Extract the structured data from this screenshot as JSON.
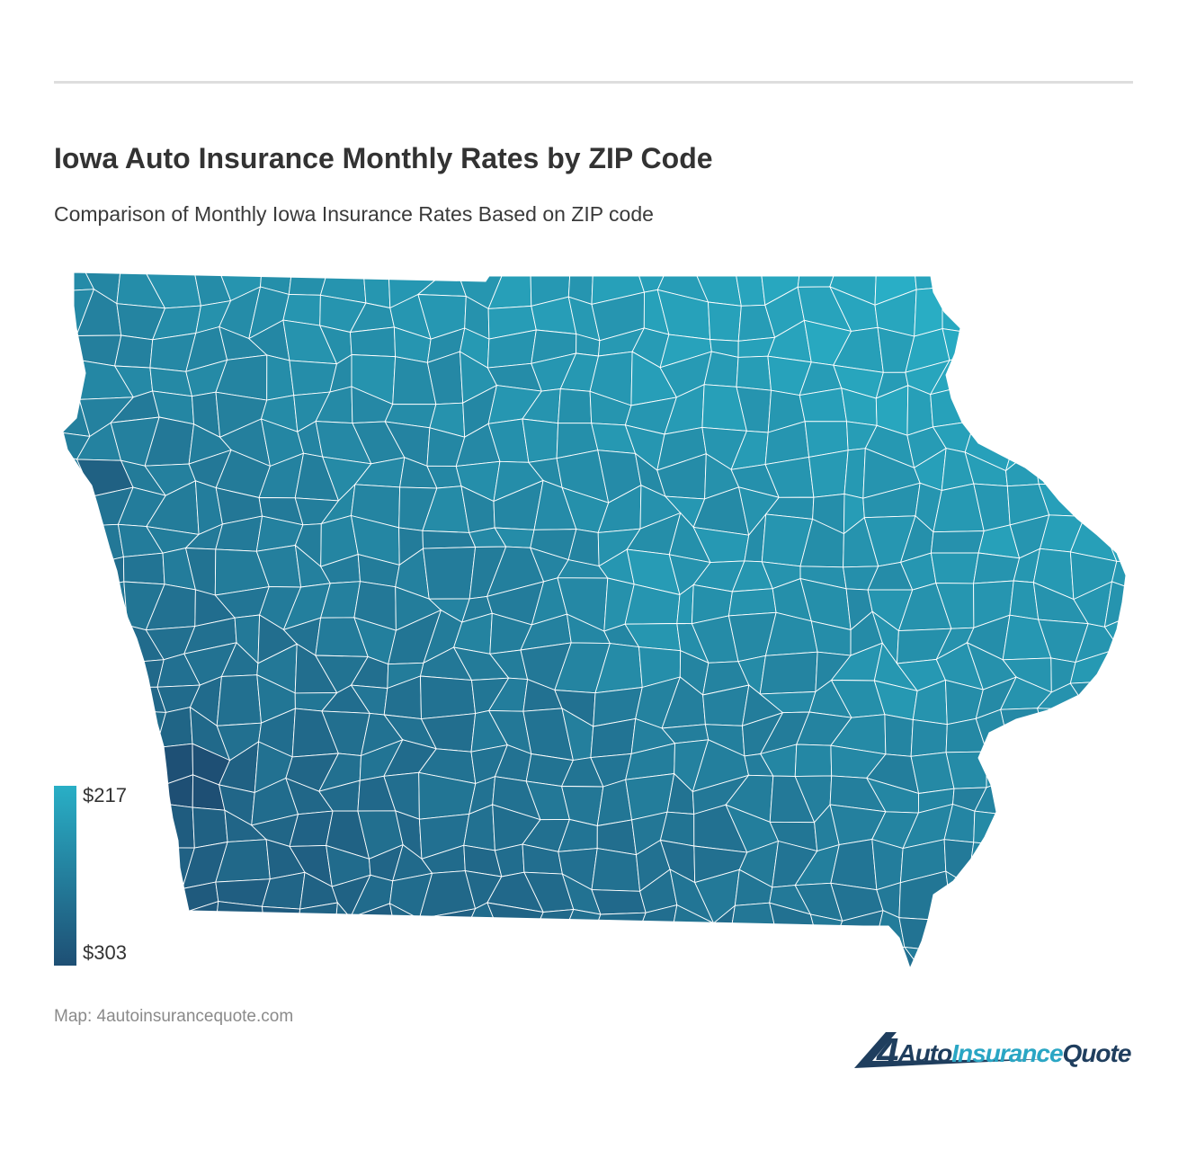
{
  "header": {
    "title": "Iowa Auto Insurance Monthly Rates by ZIP Code",
    "subtitle": "Comparison of Monthly Iowa Insurance Rates Based on ZIP code"
  },
  "legend": {
    "max_label": "$217",
    "min_label": "$303",
    "color_low_rate": "#29afc6",
    "color_high_rate": "#1e4f74"
  },
  "map": {
    "region": "Iowa",
    "base_color": "#2b94b3",
    "border_color": "#ffffff"
  },
  "footer": {
    "source": "Map: 4autoinsurancequote.com"
  },
  "logo": {
    "number": "4",
    "part1": "Auto",
    "part2": "Insurance",
    "part3": "Quote"
  }
}
